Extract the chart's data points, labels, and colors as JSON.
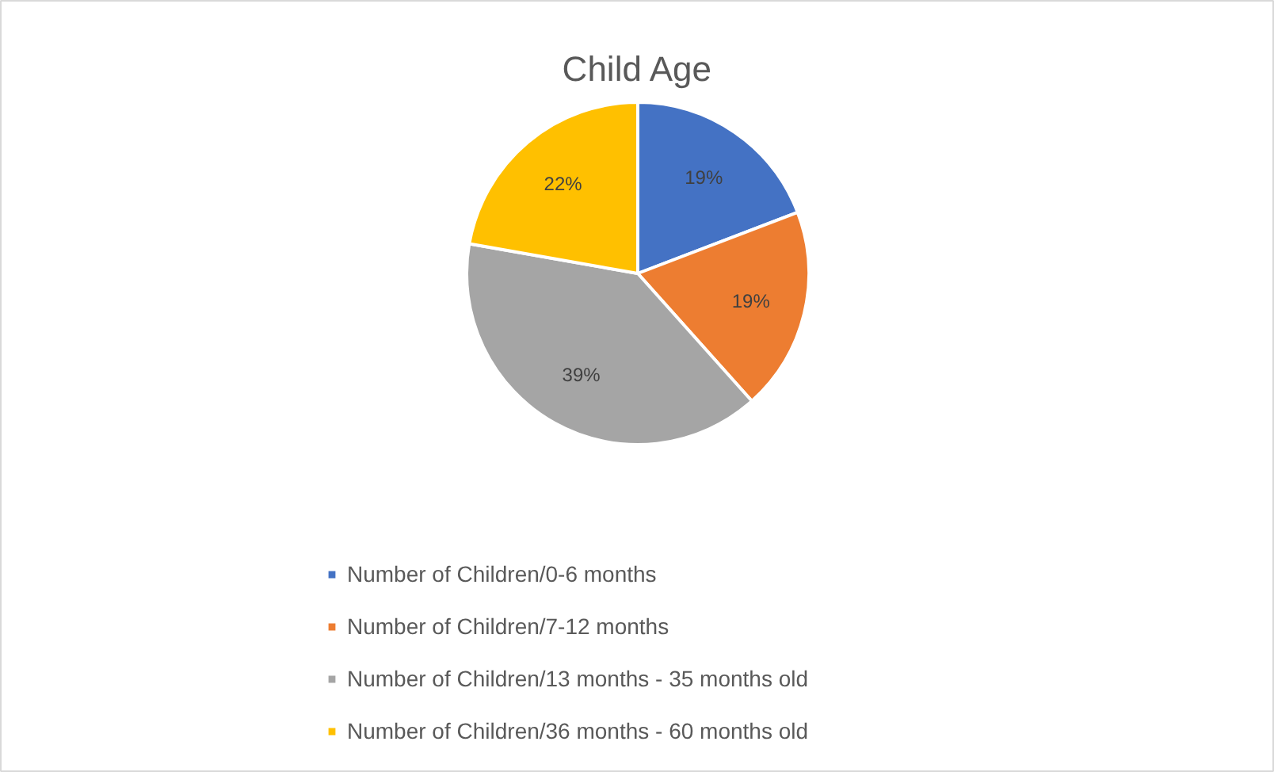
{
  "chart_data": {
    "type": "pie",
    "title": "Child Age",
    "categories": [
      "Number of Children/0-6 months",
      "Number of Children/7-12 months",
      "Number of Children/13 months - 35 months old",
      "Number of Children/36 months - 60 months old"
    ],
    "values": [
      19,
      19,
      39,
      22
    ],
    "colors": [
      "#4472c4",
      "#ed7d31",
      "#a5a5a5",
      "#ffc000"
    ],
    "value_labels": [
      "19%",
      "19%",
      "39%",
      "22%"
    ],
    "legend": "bottom"
  }
}
